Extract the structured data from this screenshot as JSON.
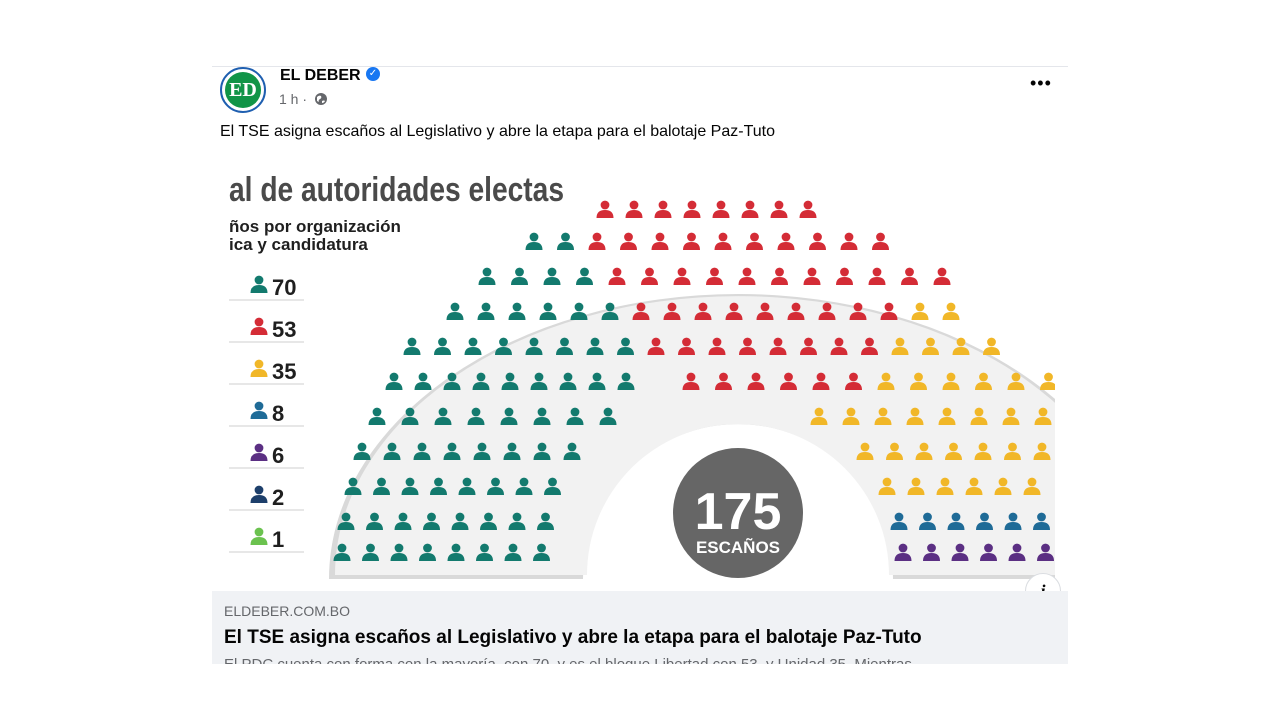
{
  "post": {
    "page_name": "EL DEBER",
    "avatar_text": "ED",
    "time": "1 h ·",
    "text": "El TSE asigna escaños al Legislativo y abre la etapa para el balotaje Paz-Tuto",
    "more": "•••"
  },
  "infographic": {
    "heading": "al de autoridades electas",
    "subheading_1": "ños por organización",
    "subheading_2": "ica y candidatura",
    "total_number": "175",
    "total_label": "ESCAÑOS",
    "legend": [
      {
        "count": "70",
        "color": "#137a6e"
      },
      {
        "count": "53",
        "color": "#d42c36"
      },
      {
        "count": "35",
        "color": "#f1b728"
      },
      {
        "count": "8",
        "color": "#1f6b97"
      },
      {
        "count": "6",
        "color": "#5b2f83"
      },
      {
        "count": "2",
        "color": "#1d3f6b"
      },
      {
        "count": "1",
        "color": "#6bc24f"
      }
    ]
  },
  "link": {
    "domain": "ELDEBER.COM.BO",
    "title": "El TSE asigna escaños al Legislativo y abre la etapa para el balotaje Paz-Tuto",
    "description": "El PDC cuenta con forma con la mayoría, con 70, y es el bloque Libertad con 53, y Unidad 35, Mientras"
  }
}
